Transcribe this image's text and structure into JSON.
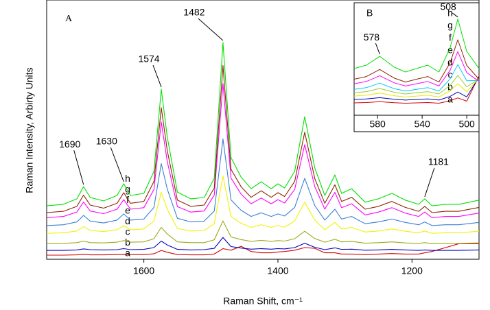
{
  "chart_data": [
    {
      "type": "line",
      "panel_label": "A",
      "xlabel": "Raman Shift, cm⁻¹",
      "ylabel": "Raman Intensity, Arbirty Units",
      "xlim": [
        1745,
        1100
      ],
      "ylim": [
        0,
        100
      ],
      "xticks": [
        1600,
        1400,
        1200
      ],
      "peak_labels": [
        1690,
        1630,
        1574,
        1482,
        1181
      ],
      "x": [
        1745,
        1720,
        1700,
        1690,
        1680,
        1660,
        1640,
        1630,
        1620,
        1600,
        1585,
        1574,
        1565,
        1550,
        1530,
        1510,
        1495,
        1482,
        1470,
        1455,
        1440,
        1425,
        1410,
        1400,
        1390,
        1375,
        1360,
        1345,
        1330,
        1315,
        1305,
        1290,
        1270,
        1250,
        1230,
        1210,
        1190,
        1181,
        1170,
        1150,
        1130,
        1100
      ],
      "series": [
        {
          "name": "a",
          "color": "#d40000",
          "values": [
            1.6,
            1.6,
            1.7,
            1.9,
            1.7,
            1.7,
            1.8,
            1.9,
            1.8,
            1.8,
            2.1,
            3.4,
            2.7,
            1.8,
            1.7,
            1.7,
            2,
            4.1,
            3.5,
            5,
            3,
            2.5,
            2.5,
            2.8,
            3,
            3.5,
            4.5,
            4.2,
            2.5,
            2.5,
            2,
            2,
            1.8,
            2,
            2.2,
            2,
            2,
            2.5,
            3,
            4.5,
            6,
            6
          ]
        },
        {
          "name": "b",
          "color": "#0000c0",
          "values": [
            3.4,
            3.4,
            3.6,
            4,
            3.7,
            3.6,
            3.7,
            4.1,
            3.7,
            3.8,
            4.5,
            7,
            5.5,
            3.8,
            3.6,
            3.7,
            4.2,
            8.4,
            4.9,
            4.3,
            3.9,
            4.1,
            3.9,
            4.1,
            4,
            4.5,
            6.2,
            4.6,
            3.7,
            4.4,
            3.8,
            3.9,
            3.5,
            3.6,
            3.8,
            3.6,
            3.4,
            3.6,
            3.4,
            3.4,
            3.4,
            3.6
          ]
        },
        {
          "name": "c",
          "color": "#9aaa1a",
          "values": [
            6,
            6.1,
            6.4,
            7,
            6.4,
            6.3,
            6.6,
            7.2,
            6.6,
            6.7,
            7.9,
            12.3,
            9.7,
            6.7,
            6.4,
            6.4,
            7.5,
            14.8,
            8.6,
            7.6,
            6.9,
            7.3,
            6.9,
            7.2,
            7,
            7.9,
            10.8,
            8,
            6.6,
            7.7,
            6.7,
            6.9,
            6.2,
            6.4,
            6.7,
            6.3,
            6.1,
            6.4,
            6,
            6.1,
            6.1,
            6.3
          ]
        },
        {
          "name": "d",
          "color": "#f2f200",
          "values": [
            10,
            10.2,
            10.9,
            12.6,
            11.1,
            10.7,
            11.4,
            13,
            11.4,
            11.7,
            14.7,
            25.8,
            19.2,
            11.9,
            10.9,
            11.1,
            13.7,
            32.1,
            16.5,
            13.9,
            12.3,
            13.3,
            12.3,
            13,
            12.4,
            14.7,
            22,
            15.1,
            11.4,
            14.2,
            11.7,
            12.3,
            10.5,
            10.9,
            11.7,
            10.8,
            10.2,
            10.9,
            10,
            10.2,
            10.2,
            10.8
          ]
        },
        {
          "name": "e",
          "color": "#3a7fd5",
          "values": [
            13,
            13.3,
            14.4,
            16.9,
            14.7,
            14,
            15.1,
            17.5,
            15.1,
            15.5,
            20,
            36.9,
            27,
            15.8,
            14.4,
            14.7,
            18.6,
            46.4,
            22.9,
            18.9,
            16.5,
            17.9,
            16.5,
            17.5,
            16.7,
            20,
            31.2,
            20.7,
            15.1,
            19.3,
            15.5,
            16.5,
            13.7,
            14.4,
            15.5,
            14.2,
            13.3,
            14.4,
            13,
            13.3,
            13.3,
            14.2
          ]
        },
        {
          "name": "f",
          "color": "#ff00ff",
          "values": [
            16,
            16.5,
            18.2,
            22.1,
            18.6,
            17.6,
            19.3,
            23,
            19.3,
            19.9,
            26.9,
            52.9,
            37.6,
            20.3,
            18.2,
            18.6,
            24.7,
            67.7,
            31.3,
            25.1,
            21.4,
            23.6,
            21.4,
            23,
            21.7,
            26.9,
            44.2,
            28,
            19.3,
            25.8,
            19.9,
            21.4,
            17.1,
            18.2,
            19.9,
            17.8,
            16.5,
            18.2,
            16,
            16.5,
            16.5,
            17.8
          ]
        },
        {
          "name": "g",
          "color": "#8b2500",
          "values": [
            18,
            18.5,
            20.4,
            24.7,
            20.9,
            19.7,
            21.6,
            25.7,
            21.6,
            22.3,
            30,
            58.5,
            41.8,
            22.8,
            20.4,
            20.9,
            27.5,
            74.7,
            34.7,
            28,
            23.9,
            26.4,
            23.9,
            25.7,
            24.2,
            30,
            49,
            31.1,
            21.6,
            28.7,
            22.3,
            23.9,
            19.3,
            20.4,
            22.3,
            20,
            18.5,
            20.4,
            18,
            18.5,
            18.5,
            20
          ]
        },
        {
          "name": "h",
          "color": "#00e000",
          "values": [
            20.6,
            21.2,
            23.3,
            28,
            23.8,
            22.5,
            24.6,
            29.1,
            24.6,
            25.4,
            33.9,
            65.6,
            47,
            25.9,
            23.3,
            23.8,
            31.2,
            83.6,
            39.2,
            31.7,
            27.2,
            29.9,
            27.2,
            29.1,
            27.5,
            33.9,
            55,
            35.2,
            24.6,
            32.5,
            25.4,
            27.2,
            22,
            23.3,
            25.4,
            22.8,
            21.2,
            23.3,
            20.6,
            21.2,
            21.2,
            22.8
          ]
        }
      ]
    },
    {
      "type": "line",
      "panel_label": "B",
      "xlim": [
        601,
        489
      ],
      "ylim": [
        0,
        100
      ],
      "xticks": [
        580,
        540,
        500
      ],
      "peak_labels": [
        578,
        508
      ],
      "x": [
        601,
        590,
        578,
        565,
        555,
        545,
        535,
        525,
        515,
        508,
        500,
        489
      ],
      "series": [
        {
          "name": "a",
          "color": "#d40000",
          "values": [
            11,
            11.3,
            12.1,
            11.1,
            10.7,
            11,
            11.3,
            10.7,
            12.8,
            15.4,
            12.5,
            35
          ]
        },
        {
          "name": "b",
          "color": "#0000c0",
          "values": [
            14,
            14.5,
            15.6,
            14.2,
            13.5,
            14,
            14.5,
            13.5,
            16.7,
            20.6,
            16.3,
            34
          ]
        },
        {
          "name": "c",
          "color": "#e8e800",
          "values": [
            17,
            17.8,
            19.7,
            17.3,
            16.2,
            17,
            17.8,
            16.2,
            21.6,
            28,
            20.8,
            33
          ]
        },
        {
          "name": "d",
          "color": "#9acd32",
          "values": [
            20,
            21,
            23.8,
            20.4,
            18.9,
            20,
            21,
            18.9,
            26.4,
            35.4,
            25.3,
            32
          ]
        },
        {
          "name": "e",
          "color": "#00c8ff",
          "values": [
            23,
            24.5,
            28.5,
            23.6,
            21.5,
            23,
            24.5,
            21.5,
            32.2,
            45,
            30.6,
            31
          ]
        },
        {
          "name": "f",
          "color": "#ff00ff",
          "values": [
            28,
            30,
            35.1,
            28.8,
            26,
            28,
            30,
            26,
            39.9,
            56.5,
            37.9,
            30
          ]
        },
        {
          "name": "g",
          "color": "#8b2500",
          "values": [
            32,
            34.4,
            40.7,
            33,
            29.5,
            32,
            34.4,
            29.5,
            46.6,
            67.1,
            44.2,
            32
          ]
        },
        {
          "name": "h",
          "color": "#00e000",
          "values": [
            41.5,
            44.5,
            52.4,
            42.7,
            38.4,
            41.5,
            44.5,
            38.4,
            59.8,
            85.4,
            56.7,
            41.5
          ]
        }
      ]
    }
  ]
}
